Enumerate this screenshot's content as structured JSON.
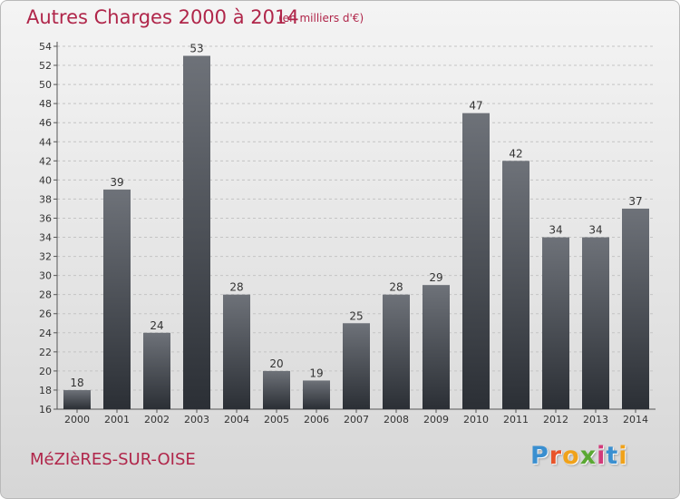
{
  "title": "Autres Charges 2000 à 2014",
  "subtitle": "(en milliers d'€)",
  "commune": "MéZIèRES-SUR-OISE",
  "logo": {
    "letters": [
      "P",
      "r",
      "o",
      "x",
      "i",
      "t",
      "i"
    ],
    "colors": [
      "#3a8fd0",
      "#e8542a",
      "#f0a21a",
      "#5aa832",
      "#d23a7a",
      "#3a8fd0",
      "#f0a21a"
    ]
  },
  "colors": {
    "title": "#b0264a",
    "bar_top": "#6e7279",
    "bar_bottom": "#2b2f35"
  },
  "chart_data": {
    "type": "bar",
    "categories": [
      "2000",
      "2001",
      "2002",
      "2003",
      "2004",
      "2005",
      "2006",
      "2007",
      "2008",
      "2009",
      "2010",
      "2011",
      "2012",
      "2013",
      "2014"
    ],
    "values": [
      18,
      39,
      24,
      53,
      28,
      20,
      19,
      25,
      28,
      29,
      47,
      42,
      34,
      34,
      37
    ],
    "ylim": [
      16,
      54
    ],
    "yticks": [
      16,
      18,
      20,
      22,
      24,
      26,
      28,
      30,
      32,
      34,
      36,
      38,
      40,
      42,
      44,
      46,
      48,
      50,
      52,
      54
    ],
    "grid": true
  }
}
